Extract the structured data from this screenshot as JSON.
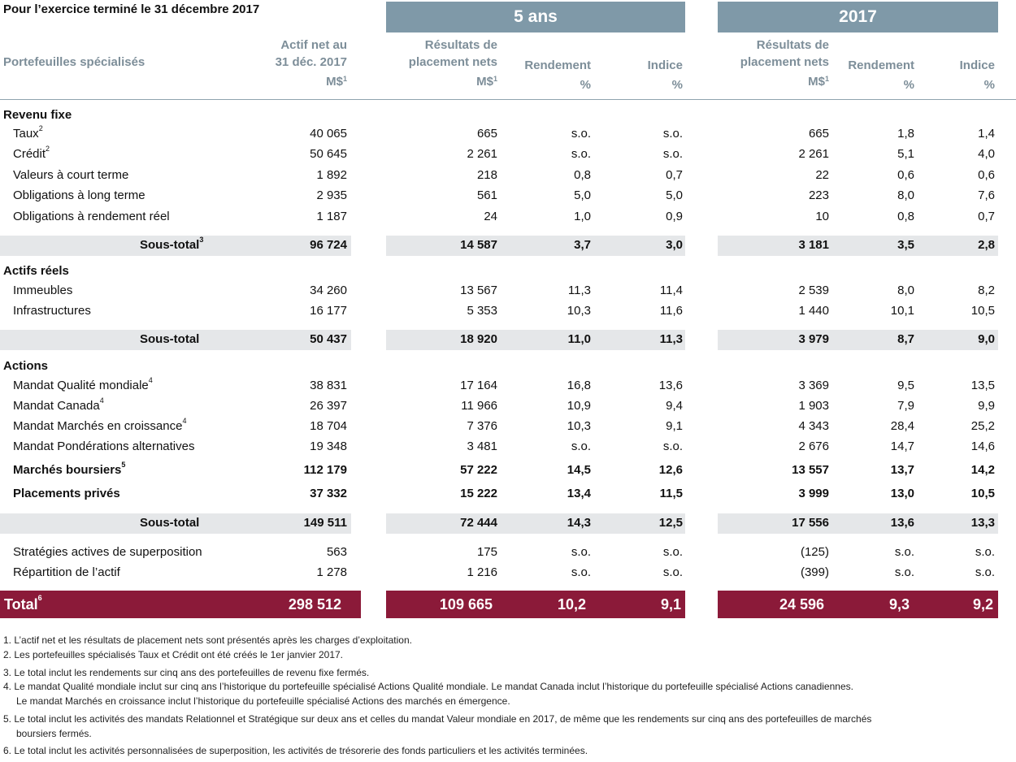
{
  "title": "Pour l’exercice terminé le 31 décembre 2017",
  "groups": {
    "five_years": "5 ans",
    "year": "2017"
  },
  "headers": {
    "portfolios": "Portefeuilles spécialisés",
    "net_assets": [
      "Actif net au",
      "31 déc. 2017",
      "M$",
      "1"
    ],
    "results_5": [
      "Résultats de",
      "placement nets",
      "M$",
      "1"
    ],
    "return_5": [
      "Rendement",
      "%"
    ],
    "index_5": [
      "Indice",
      "%"
    ],
    "results_y": [
      "Résultats de",
      "placement nets",
      "M$",
      "1"
    ],
    "return_y": [
      "Rendement",
      "%"
    ],
    "index_y": [
      "Indice",
      "%"
    ]
  },
  "rows": [
    {
      "type": "section",
      "label": "Revenu fixe"
    },
    {
      "label": "Taux",
      "sup": "2",
      "values": [
        "40 065",
        "665",
        "s.o.",
        "s.o.",
        "665",
        "1,8",
        "1,4"
      ]
    },
    {
      "label": "Crédit",
      "sup": "2",
      "values": [
        "50 645",
        "2 261",
        "s.o.",
        "s.o.",
        "2 261",
        "5,1",
        "4,0"
      ]
    },
    {
      "label": "Valeurs à court terme",
      "values": [
        "1 892",
        "218",
        "0,8",
        "0,7",
        "22",
        "0,6",
        "0,6"
      ]
    },
    {
      "label": "Obligations à long terme",
      "values": [
        "2 935",
        "561",
        "5,0",
        "5,0",
        "223",
        "8,0",
        "7,6"
      ]
    },
    {
      "label": "Obligations à rendement réel",
      "values": [
        "1 187",
        "24",
        "1,0",
        "0,9",
        "10",
        "0,8",
        "0,7"
      ]
    },
    {
      "type": "subtotal",
      "label": "Sous-total",
      "sup": "3",
      "values": [
        "96 724",
        "14 587",
        "3,7",
        "3,0",
        "3 181",
        "3,5",
        "2,8"
      ]
    },
    {
      "type": "section",
      "label": "Actifs réels"
    },
    {
      "label": "Immeubles",
      "values": [
        "34 260",
        "13 567",
        "11,3",
        "11,4",
        "2 539",
        "8,0",
        "8,2"
      ]
    },
    {
      "label": "Infrastructures",
      "values": [
        "16 177",
        "5 353",
        "10,3",
        "11,6",
        "1 440",
        "10,1",
        "10,5"
      ]
    },
    {
      "type": "subtotal",
      "label": "Sous-total",
      "values": [
        "50 437",
        "18 920",
        "11,0",
        "11,3",
        "3 979",
        "8,7",
        "9,0"
      ]
    },
    {
      "type": "section",
      "label": "Actions"
    },
    {
      "label": "Mandat Qualité mondiale",
      "sup": "4",
      "values": [
        "38 831",
        "17 164",
        "16,8",
        "13,6",
        "3 369",
        "9,5",
        "13,5"
      ]
    },
    {
      "label": "Mandat Canada",
      "sup": "4",
      "values": [
        "26 397",
        "11 966",
        "10,9",
        "9,4",
        "1 903",
        "7,9",
        "9,9"
      ]
    },
    {
      "label": "Mandat Marchés en croissance",
      "sup": "4",
      "values": [
        "18 704",
        "7 376",
        "10,3",
        "9,1",
        "4 343",
        "28,4",
        "25,2"
      ]
    },
    {
      "label": "Mandat Pondérations alternatives",
      "values": [
        "19 348",
        "3 481",
        "s.o.",
        "s.o.",
        "2 676",
        "14,7",
        "14,6"
      ]
    },
    {
      "type": "bold",
      "label": "Marchés boursiers",
      "sup": "5",
      "values": [
        "112 179",
        "57 222",
        "14,5",
        "12,6",
        "13 557",
        "13,7",
        "14,2"
      ]
    },
    {
      "type": "bold",
      "label": "Placements privés",
      "values": [
        "37 332",
        "15 222",
        "13,4",
        "11,5",
        "3 999",
        "13,0",
        "10,5"
      ]
    },
    {
      "type": "subtotal",
      "label": "Sous-total",
      "values": [
        "149 511",
        "72 444",
        "14,3",
        "12,5",
        "17 556",
        "13,6",
        "13,3"
      ]
    },
    {
      "label": "Stratégies actives de superposition",
      "values": [
        "563",
        "175",
        "s.o.",
        "s.o.",
        "(125)",
        "s.o.",
        "s.o."
      ]
    },
    {
      "label": "Répartition de l’actif",
      "values": [
        "1 278",
        "1 216",
        "s.o.",
        "s.o.",
        "(399)",
        "s.o.",
        "s.o."
      ]
    }
  ],
  "total": {
    "label": "Total",
    "sup": "6",
    "values": [
      "298 512",
      "109 665",
      "10,2",
      "9,1",
      "24 596",
      "9,3",
      "9,2"
    ]
  },
  "footnotes": [
    "1. L’actif net et les résultats de placement nets sont présentés après les charges d’exploitation.",
    "2. Les portefeuilles spécialisés Taux et Crédit ont été créés le 1er janvier 2017.",
    "3. Le total inclut les rendements sur cinq ans des portefeuilles de revenu fixe fermés.",
    "4. Le mandat Qualité mondiale inclut sur cinq ans l’historique du portefeuille spécialisé Actions Qualité mondiale. Le mandat Canada inclut l’historique du portefeuille spécialisé Actions canadiennes.",
    "Le mandat Marchés en croissance inclut l’historique du portefeuille spécialisé Actions des marchés en émergence.",
    "5. Le total inclut les activités des mandats Relationnel et Stratégique sur deux ans et celles du mandat Valeur mondiale en 2017, de même que les rendements sur cinq ans des portefeuilles de marchés",
    "boursiers fermés.",
    "6. Le total inclut les activités personnalisées de superposition, les activités de trésorerie des fonds particuliers et les activités terminées."
  ],
  "colors": {
    "group_header": "#7f99a8",
    "header_text": "#7d8e99",
    "subtotal_band": "#e5e7e9",
    "total_band": "#8b1a39"
  }
}
